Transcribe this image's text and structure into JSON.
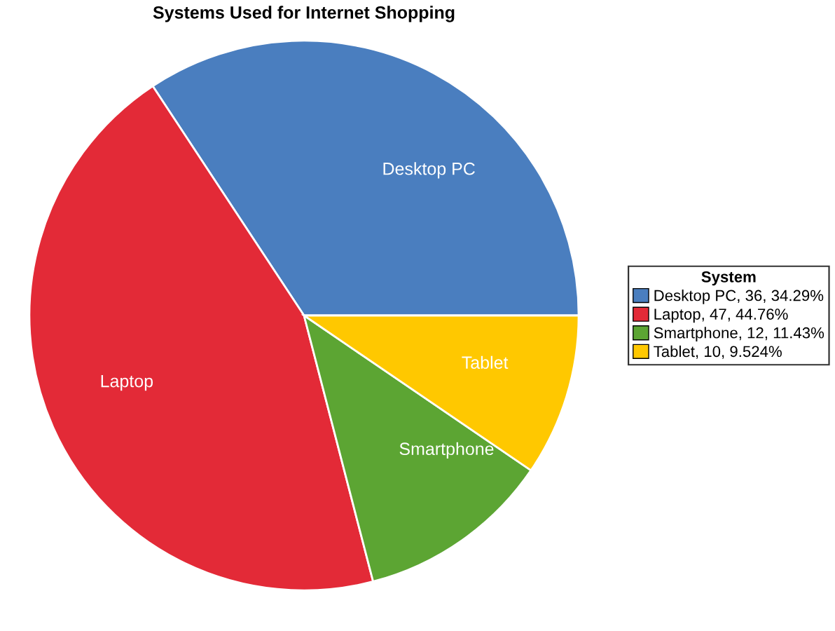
{
  "chart_data": {
    "type": "pie",
    "title": "Systems Used for Internet Shopping",
    "legend_title": "System",
    "categories": [
      "Desktop PC",
      "Laptop",
      "Smartphone",
      "Tablet"
    ],
    "values": [
      36,
      47,
      12,
      10
    ],
    "value_labels": [
      ", 36, 34.29%",
      ", 47, 44.76%",
      ", 12, 11.43%",
      ", 10, 9.524%"
    ],
    "colors": [
      "#4a7ebf",
      "#e32a37",
      "#5ca533",
      "#ffc800"
    ],
    "legend": "right"
  }
}
